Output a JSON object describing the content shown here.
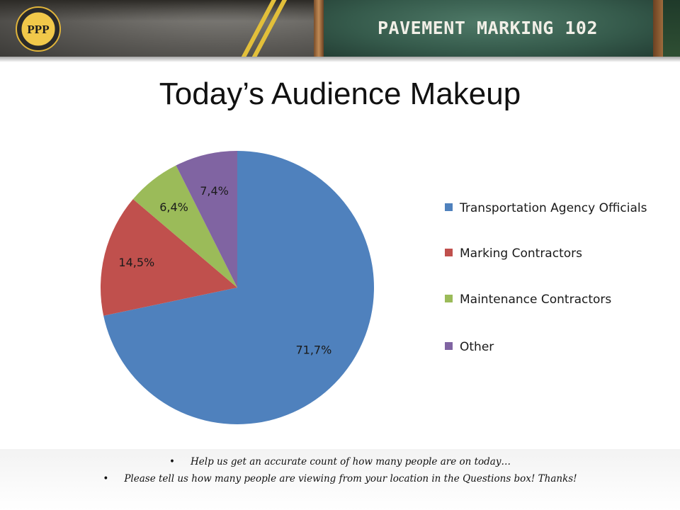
{
  "banner": {
    "title": "PAVEMENT MARKING 102",
    "logo_text": "PPP"
  },
  "page_title": "Today’s Audience Makeup",
  "chart_data": {
    "type": "pie",
    "categories": [
      "Transportation Agency Officials",
      "Marking Contractors",
      "Maintenance Contractors",
      "Other"
    ],
    "values": [
      71.7,
      14.5,
      6.4,
      7.4
    ],
    "labels": [
      "71,7%",
      "14,5%",
      "6,4%",
      "7,4%"
    ],
    "colors": [
      "#4f81bd",
      "#c0504d",
      "#9bbb59",
      "#8064a2"
    ],
    "title": "",
    "legend": "right"
  },
  "legend": {
    "items": [
      {
        "label": "Transportation Agency Officials",
        "color": "#4f81bd"
      },
      {
        "label": "Marking Contractors",
        "color": "#c0504d"
      },
      {
        "label": "Maintenance Contractors",
        "color": "#9bbb59"
      },
      {
        "label": "Other",
        "color": "#8064a2"
      }
    ]
  },
  "notes": {
    "bullet": "•",
    "line1": "Help us get an accurate count of how many people are on today…",
    "line2": "Please tell us how many people are viewing from your location in the Questions box! Thanks!"
  }
}
